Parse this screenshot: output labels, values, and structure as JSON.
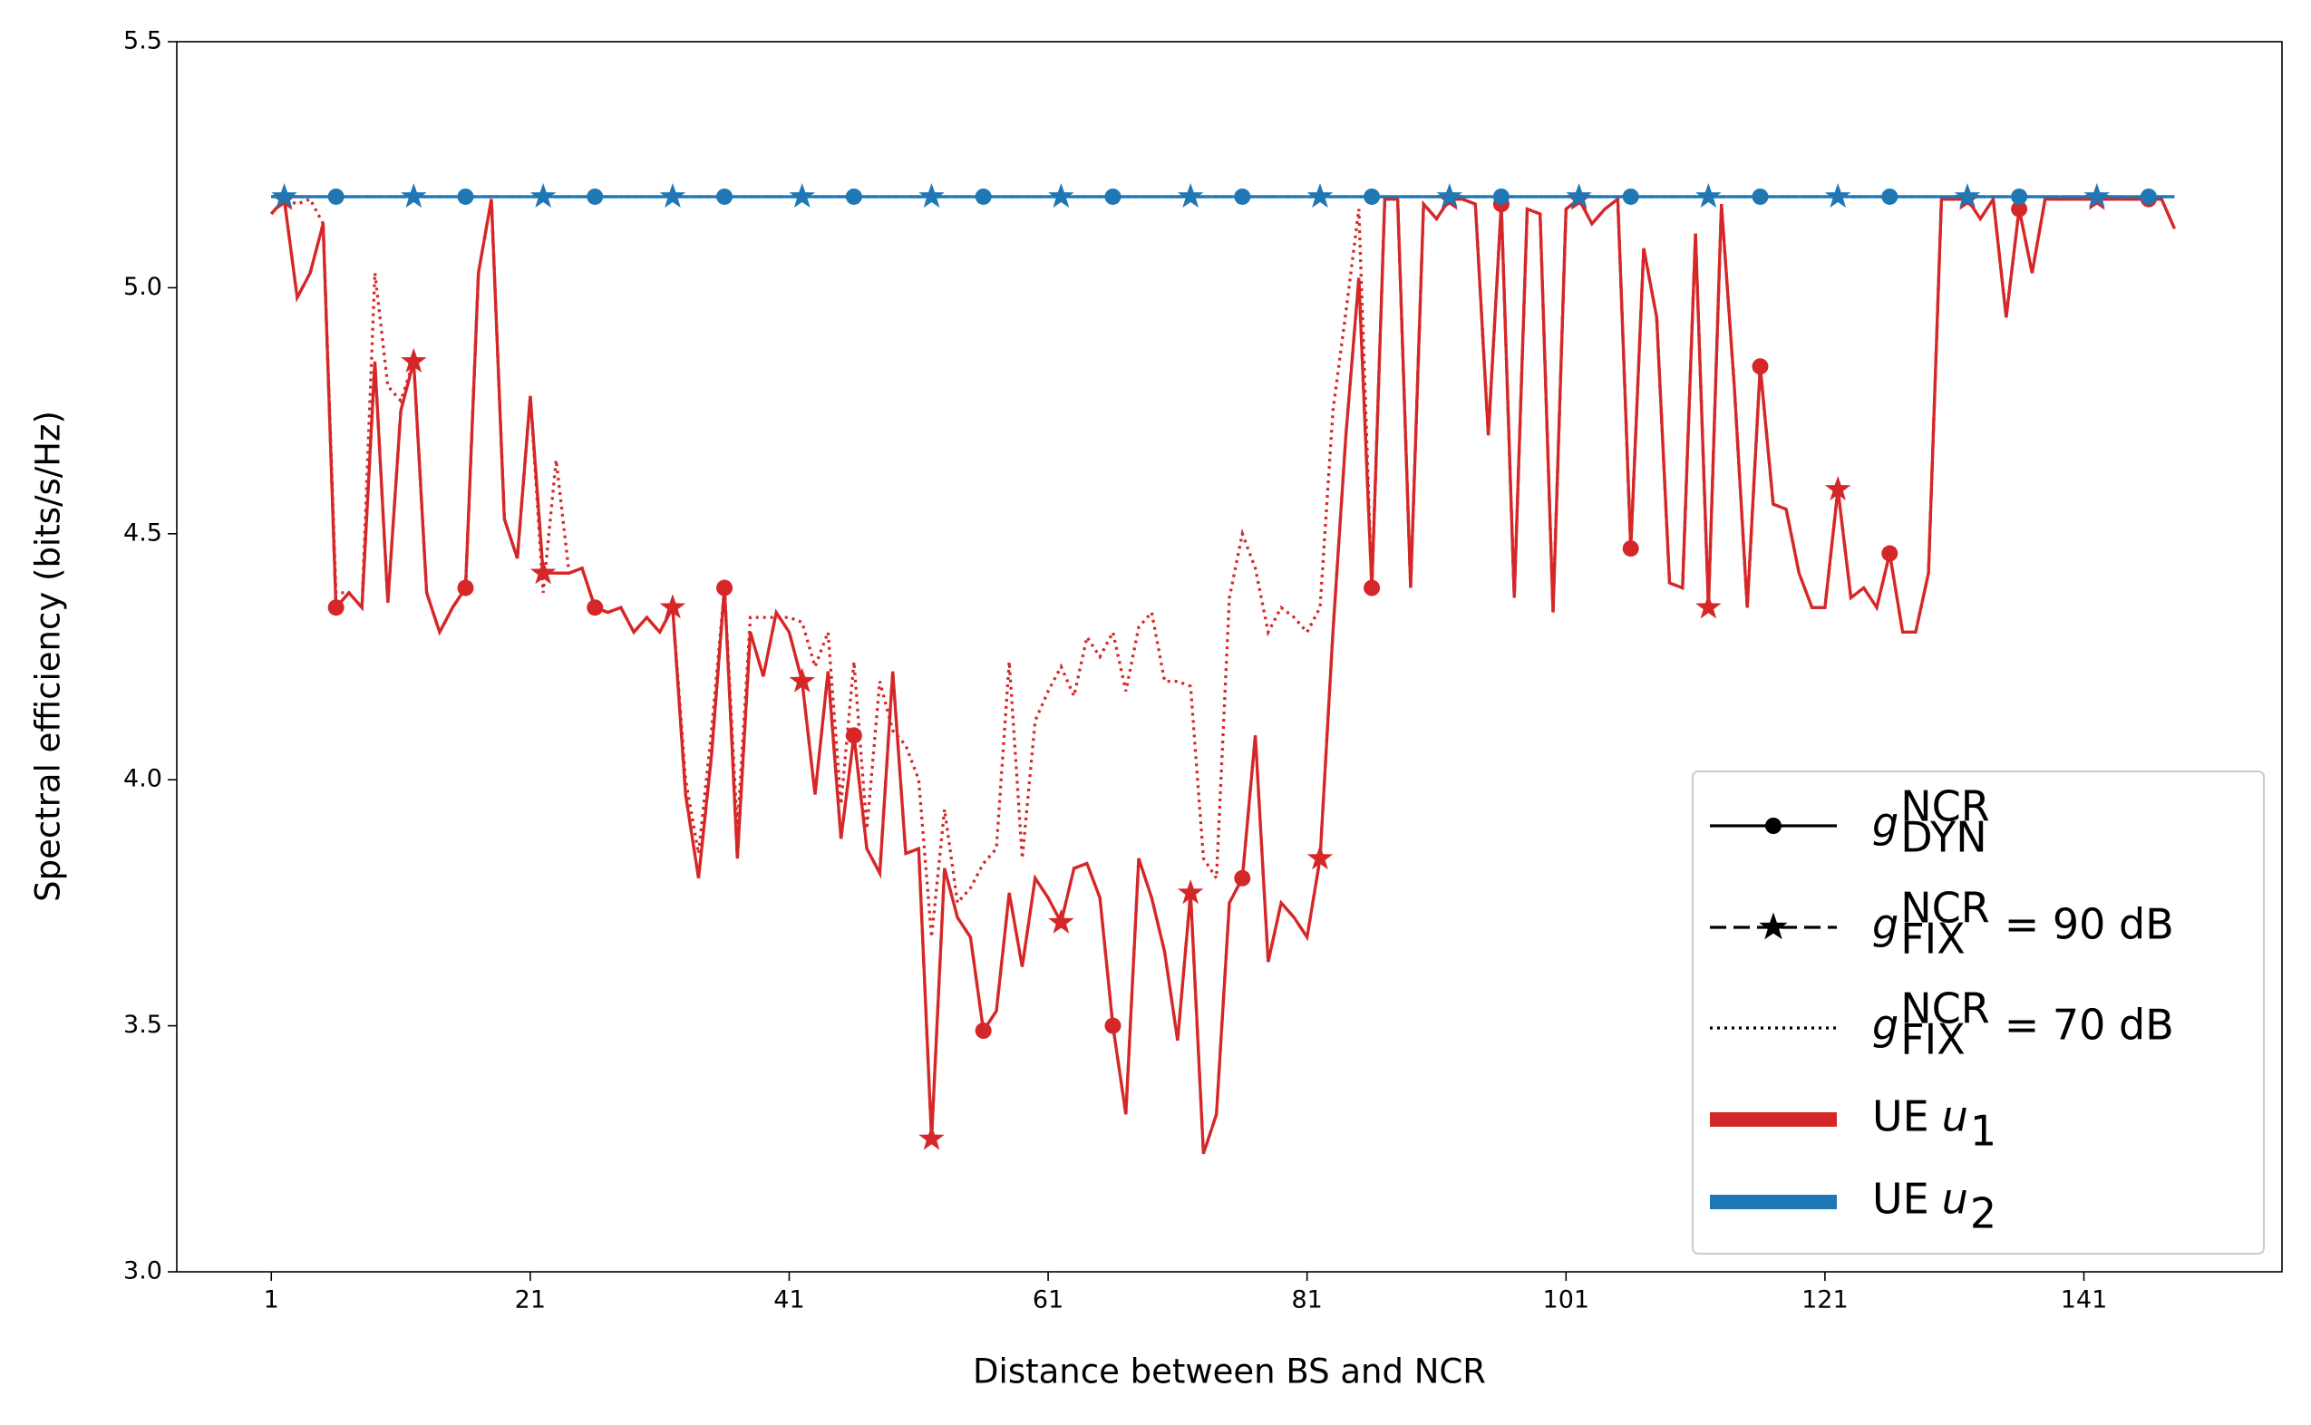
{
  "chart_data": {
    "type": "line",
    "x_label": "Distance between BS and NCR",
    "y_label": "Spectral efficiency (bits/s/Hz)",
    "x": [
      1,
      2,
      3,
      4,
      5,
      6,
      7,
      8,
      9,
      10,
      11,
      12,
      13,
      14,
      15,
      16,
      17,
      18,
      19,
      20,
      21,
      22,
      23,
      24,
      25,
      26,
      27,
      28,
      29,
      30,
      31,
      32,
      33,
      34,
      35,
      36,
      37,
      38,
      39,
      40,
      41,
      42,
      43,
      44,
      45,
      46,
      47,
      48,
      49,
      50,
      51,
      52,
      53,
      54,
      55,
      56,
      57,
      58,
      59,
      60,
      61,
      62,
      63,
      64,
      65,
      66,
      67,
      68,
      69,
      70,
      71,
      72,
      73,
      74,
      75,
      76,
      77,
      78,
      79,
      80,
      81,
      82,
      83,
      84,
      85,
      86,
      87,
      88,
      89,
      90,
      91,
      92,
      93,
      94,
      95,
      96,
      97,
      98,
      99,
      100,
      101,
      102,
      103,
      104,
      105,
      106,
      107,
      108,
      109,
      110,
      111,
      112,
      113,
      114,
      115,
      116,
      117,
      118,
      119,
      120,
      121,
      122,
      123,
      124,
      125,
      126,
      127,
      128,
      129,
      130,
      131,
      132,
      133,
      134,
      135,
      136,
      137,
      138,
      139,
      140,
      141,
      142,
      143,
      144,
      145,
      146,
      147,
      148
    ],
    "xlim": [
      -6.3,
      156.3
    ],
    "xticks": [
      1,
      21,
      41,
      61,
      81,
      101,
      121,
      141
    ],
    "ylim": [
      3.0,
      5.5
    ],
    "yticks": [
      {
        "value": 3.0,
        "label": "3.0"
      },
      3.5,
      {
        "value": 4.0,
        "label": "4.0"
      },
      4.5,
      {
        "value": 5.0,
        "label": "5.0"
      },
      5.5
    ],
    "series": [
      {
        "color": "#d62728",
        "linestyle": "dotted",
        "values": [
          5.15,
          5.18,
          5.17,
          5.18,
          5.13,
          4.38,
          4.38,
          4.35,
          5.03,
          4.8,
          4.77,
          4.85,
          4.38,
          4.3,
          4.35,
          4.39,
          5.03,
          5.18,
          4.53,
          4.45,
          4.78,
          4.38,
          4.65,
          4.42,
          4.43,
          4.35,
          4.34,
          4.35,
          4.3,
          4.33,
          4.3,
          4.35,
          4.0,
          3.85,
          4.1,
          4.39,
          3.9,
          4.33,
          4.33,
          4.33,
          4.33,
          4.32,
          4.23,
          4.3,
          3.95,
          4.24,
          3.9,
          4.2,
          4.1,
          4.07,
          4.0,
          3.68,
          3.94,
          3.75,
          3.78,
          3.83,
          3.86,
          4.24,
          3.84,
          4.12,
          4.18,
          4.23,
          4.17,
          4.29,
          4.25,
          4.3,
          4.18,
          4.31,
          4.34,
          4.2,
          4.2,
          4.19,
          3.84,
          3.8,
          4.37,
          4.5,
          4.43,
          4.3,
          4.35,
          4.33,
          4.3,
          4.35,
          4.75,
          4.95,
          5.16,
          4.39,
          5.18,
          5.18,
          4.39,
          5.17,
          5.14,
          5.18,
          5.18,
          5.17,
          4.7,
          5.17,
          4.37,
          5.16,
          5.15,
          4.34,
          5.16,
          5.18,
          5.13,
          5.16,
          5.18,
          4.47,
          5.08,
          4.94,
          4.4,
          4.39,
          5.11,
          4.35,
          5.17,
          4.8,
          4.35,
          4.84,
          4.56,
          4.55,
          4.42,
          4.35,
          4.35,
          4.59,
          4.37,
          4.39,
          4.35,
          4.46,
          4.3,
          4.3,
          4.42,
          5.18,
          5.18,
          5.18,
          5.14,
          5.18,
          4.94,
          5.16,
          5.03,
          5.18,
          5.18,
          5.18,
          5.18,
          5.18,
          5.18,
          5.18,
          5.18,
          5.18,
          5.18,
          5.12
        ]
      },
      {
        "color": "#d62728",
        "linestyle": "dashed",
        "marker": "star",
        "markevery": [
          1,
          10
        ],
        "values": [
          5.15,
          5.18,
          4.98,
          5.03,
          5.13,
          4.35,
          4.38,
          4.35,
          4.85,
          4.36,
          4.75,
          4.85,
          4.38,
          4.3,
          4.35,
          4.39,
          5.03,
          5.18,
          4.53,
          4.45,
          4.78,
          4.42,
          4.42,
          4.42,
          4.43,
          4.35,
          4.34,
          4.35,
          4.3,
          4.33,
          4.3,
          4.35,
          3.97,
          3.8,
          4.05,
          4.39,
          3.84,
          4.3,
          4.21,
          4.34,
          4.3,
          4.2,
          3.97,
          4.22,
          3.88,
          4.09,
          3.86,
          3.81,
          4.22,
          3.85,
          3.86,
          3.27,
          3.82,
          3.72,
          3.68,
          3.49,
          3.53,
          3.77,
          3.62,
          3.8,
          3.76,
          3.71,
          3.82,
          3.83,
          3.76,
          3.5,
          3.32,
          3.84,
          3.76,
          3.65,
          3.47,
          3.77,
          3.24,
          3.32,
          3.75,
          3.8,
          4.09,
          3.63,
          3.75,
          3.72,
          3.68,
          3.84,
          4.3,
          4.7,
          5.02,
          4.39,
          5.18,
          5.18,
          4.39,
          5.17,
          5.14,
          5.18,
          5.18,
          5.17,
          4.7,
          5.17,
          4.37,
          5.16,
          5.15,
          4.34,
          5.16,
          5.18,
          5.13,
          5.16,
          5.18,
          4.47,
          5.08,
          4.94,
          4.4,
          4.39,
          5.11,
          4.35,
          5.17,
          4.8,
          4.35,
          4.84,
          4.56,
          4.55,
          4.42,
          4.35,
          4.35,
          4.59,
          4.37,
          4.39,
          4.35,
          4.46,
          4.3,
          4.3,
          4.42,
          5.18,
          5.18,
          5.18,
          5.14,
          5.18,
          4.94,
          5.16,
          5.03,
          5.18,
          5.18,
          5.18,
          5.18,
          5.18,
          5.18,
          5.18,
          5.18,
          5.18,
          5.18,
          5.12
        ]
      },
      {
        "color": "#d62728",
        "linestyle": "solid",
        "marker": "circle",
        "markevery": [
          5,
          10
        ],
        "values": [
          5.15,
          5.18,
          4.98,
          5.03,
          5.13,
          4.35,
          4.38,
          4.35,
          4.85,
          4.36,
          4.75,
          4.85,
          4.38,
          4.3,
          4.35,
          4.39,
          5.03,
          5.18,
          4.53,
          4.45,
          4.78,
          4.42,
          4.42,
          4.42,
          4.43,
          4.35,
          4.34,
          4.35,
          4.3,
          4.33,
          4.3,
          4.35,
          3.97,
          3.8,
          4.05,
          4.39,
          3.84,
          4.3,
          4.21,
          4.34,
          4.3,
          4.2,
          3.97,
          4.22,
          3.88,
          4.09,
          3.86,
          3.81,
          4.22,
          3.85,
          3.86,
          3.27,
          3.82,
          3.72,
          3.68,
          3.49,
          3.53,
          3.77,
          3.62,
          3.8,
          3.76,
          3.71,
          3.82,
          3.83,
          3.76,
          3.5,
          3.32,
          3.84,
          3.76,
          3.65,
          3.47,
          3.77,
          3.24,
          3.32,
          3.75,
          3.8,
          4.09,
          3.63,
          3.75,
          3.72,
          3.68,
          3.84,
          4.3,
          4.7,
          5.02,
          4.39,
          5.18,
          5.18,
          4.39,
          5.17,
          5.14,
          5.18,
          5.18,
          5.17,
          4.7,
          5.17,
          4.37,
          5.16,
          5.15,
          4.34,
          5.16,
          5.18,
          5.13,
          5.16,
          5.18,
          4.47,
          5.08,
          4.94,
          4.4,
          4.39,
          5.11,
          4.35,
          5.17,
          4.8,
          4.35,
          4.84,
          4.56,
          4.55,
          4.42,
          4.35,
          4.35,
          4.59,
          4.37,
          4.39,
          4.35,
          4.46,
          4.3,
          4.3,
          4.42,
          5.18,
          5.18,
          5.18,
          5.14,
          5.18,
          4.94,
          5.16,
          5.03,
          5.18,
          5.18,
          5.18,
          5.18,
          5.18,
          5.18,
          5.18,
          5.18,
          5.18,
          5.18,
          5.12
        ]
      },
      {
        "color": "#1f77b4",
        "linestyle": "dotted",
        "values": [
          5.185,
          5.185,
          5.185,
          5.185,
          5.185,
          5.185,
          5.185,
          5.185,
          5.185,
          5.185,
          5.185,
          5.185,
          5.185,
          5.185,
          5.185,
          5.185,
          5.185,
          5.185,
          5.185,
          5.185,
          5.185,
          5.185,
          5.185,
          5.185,
          5.185,
          5.185,
          5.185,
          5.185,
          5.185,
          5.185,
          5.185,
          5.185,
          5.185,
          5.185,
          5.185,
          5.185,
          5.185,
          5.185,
          5.185,
          5.185,
          5.185,
          5.185,
          5.185,
          5.185,
          5.185,
          5.185,
          5.185,
          5.185,
          5.185,
          5.185,
          5.185,
          5.185,
          5.185,
          5.185,
          5.185,
          5.185,
          5.185,
          5.185,
          5.185,
          5.185,
          5.185,
          5.185,
          5.185,
          5.185,
          5.185,
          5.185,
          5.185,
          5.185,
          5.185,
          5.185,
          5.185,
          5.185,
          5.185,
          5.185,
          5.185,
          5.185,
          5.185,
          5.185,
          5.185,
          5.185,
          5.185,
          5.185,
          5.185,
          5.185,
          5.185,
          5.185,
          5.185,
          5.185,
          5.185,
          5.185,
          5.185,
          5.185,
          5.185,
          5.185,
          5.185,
          5.185,
          5.185,
          5.185,
          5.185,
          5.185,
          5.185,
          5.185,
          5.185,
          5.185,
          5.185,
          5.185,
          5.185,
          5.185,
          5.185,
          5.185,
          5.185,
          5.185,
          5.185,
          5.185,
          5.185,
          5.185,
          5.185,
          5.185,
          5.185,
          5.185,
          5.185,
          5.185,
          5.185,
          5.185,
          5.185,
          5.185,
          5.185,
          5.185,
          5.185,
          5.185,
          5.185,
          5.185,
          5.185,
          5.185,
          5.185,
          5.185,
          5.185,
          5.185,
          5.185,
          5.185,
          5.185,
          5.185,
          5.185,
          5.185,
          5.185,
          5.185,
          5.185,
          5.185
        ]
      },
      {
        "color": "#1f77b4",
        "linestyle": "dashed",
        "marker": "star",
        "markevery": [
          1,
          10
        ],
        "values": [
          5.185,
          5.185,
          5.185,
          5.185,
          5.185,
          5.185,
          5.185,
          5.185,
          5.185,
          5.185,
          5.185,
          5.185,
          5.185,
          5.185,
          5.185,
          5.185,
          5.185,
          5.185,
          5.185,
          5.185,
          5.185,
          5.185,
          5.185,
          5.185,
          5.185,
          5.185,
          5.185,
          5.185,
          5.185,
          5.185,
          5.185,
          5.185,
          5.185,
          5.185,
          5.185,
          5.185,
          5.185,
          5.185,
          5.185,
          5.185,
          5.185,
          5.185,
          5.185,
          5.185,
          5.185,
          5.185,
          5.185,
          5.185,
          5.185,
          5.185,
          5.185,
          5.185,
          5.185,
          5.185,
          5.185,
          5.185,
          5.185,
          5.185,
          5.185,
          5.185,
          5.185,
          5.185,
          5.185,
          5.185,
          5.185,
          5.185,
          5.185,
          5.185,
          5.185,
          5.185,
          5.185,
          5.185,
          5.185,
          5.185,
          5.185,
          5.185,
          5.185,
          5.185,
          5.185,
          5.185,
          5.185,
          5.185,
          5.185,
          5.185,
          5.185,
          5.185,
          5.185,
          5.185,
          5.185,
          5.185,
          5.185,
          5.185,
          5.185,
          5.185,
          5.185,
          5.185,
          5.185,
          5.185,
          5.185,
          5.185,
          5.185,
          5.185,
          5.185,
          5.185,
          5.185,
          5.185,
          5.185,
          5.185,
          5.185,
          5.185,
          5.185,
          5.185,
          5.185,
          5.185,
          5.185,
          5.185,
          5.185,
          5.185,
          5.185,
          5.185,
          5.185,
          5.185,
          5.185,
          5.185,
          5.185,
          5.185,
          5.185,
          5.185,
          5.185,
          5.185,
          5.185,
          5.185,
          5.185,
          5.185,
          5.185,
          5.185,
          5.185,
          5.185,
          5.185,
          5.185,
          5.185,
          5.185,
          5.185,
          5.185,
          5.185,
          5.185,
          5.185,
          5.185
        ]
      },
      {
        "color": "#1f77b4",
        "linestyle": "solid",
        "marker": "circle",
        "markevery": [
          5,
          10
        ],
        "values": [
          5.185,
          5.185,
          5.185,
          5.185,
          5.185,
          5.185,
          5.185,
          5.185,
          5.185,
          5.185,
          5.185,
          5.185,
          5.185,
          5.185,
          5.185,
          5.185,
          5.185,
          5.185,
          5.185,
          5.185,
          5.185,
          5.185,
          5.185,
          5.185,
          5.185,
          5.185,
          5.185,
          5.185,
          5.185,
          5.185,
          5.185,
          5.185,
          5.185,
          5.185,
          5.185,
          5.185,
          5.185,
          5.185,
          5.185,
          5.185,
          5.185,
          5.185,
          5.185,
          5.185,
          5.185,
          5.185,
          5.185,
          5.185,
          5.185,
          5.185,
          5.185,
          5.185,
          5.185,
          5.185,
          5.185,
          5.185,
          5.185,
          5.185,
          5.185,
          5.185,
          5.185,
          5.185,
          5.185,
          5.185,
          5.185,
          5.185,
          5.185,
          5.185,
          5.185,
          5.185,
          5.185,
          5.185,
          5.185,
          5.185,
          5.185,
          5.185,
          5.185,
          5.185,
          5.185,
          5.185,
          5.185,
          5.185,
          5.185,
          5.185,
          5.185,
          5.185,
          5.185,
          5.185,
          5.185,
          5.185,
          5.185,
          5.185,
          5.185,
          5.185,
          5.185,
          5.185,
          5.185,
          5.185,
          5.185,
          5.185,
          5.185,
          5.185,
          5.185,
          5.185,
          5.185,
          5.185,
          5.185,
          5.185,
          5.185,
          5.185,
          5.185,
          5.185,
          5.185,
          5.185,
          5.185,
          5.185,
          5.185,
          5.185,
          5.185,
          5.185,
          5.185,
          5.185,
          5.185,
          5.185,
          5.185,
          5.185,
          5.185,
          5.185,
          5.185,
          5.185,
          5.185,
          5.185,
          5.185,
          5.185,
          5.185,
          5.185,
          5.185,
          5.185,
          5.185,
          5.185,
          5.185,
          5.185,
          5.185,
          5.185,
          5.185,
          5.185,
          5.185,
          5.185
        ]
      }
    ],
    "legend": [
      {
        "symbol": "g",
        "sup": "NCR",
        "sub": "DYN",
        "color": "#000000",
        "linestyle": "solid",
        "marker": "circle"
      },
      {
        "symbol": "g",
        "sup": "NCR",
        "sub": "FIX",
        "text": "= 90 dB",
        "color": "#000000",
        "linestyle": "dashed",
        "marker": "star"
      },
      {
        "symbol": "g",
        "sup": "NCR",
        "sub": "FIX",
        "text": "= 70 dB",
        "color": "#000000",
        "linestyle": "dotted"
      },
      {
        "prefix": "UE",
        "symbol": "u",
        "sub": "1",
        "color": "#d62728",
        "linestyle": "thick"
      },
      {
        "prefix": "UE",
        "symbol": "u",
        "sub": "2",
        "color": "#1f77b4",
        "linestyle": "thick"
      }
    ],
    "legend_position": "lower right"
  }
}
